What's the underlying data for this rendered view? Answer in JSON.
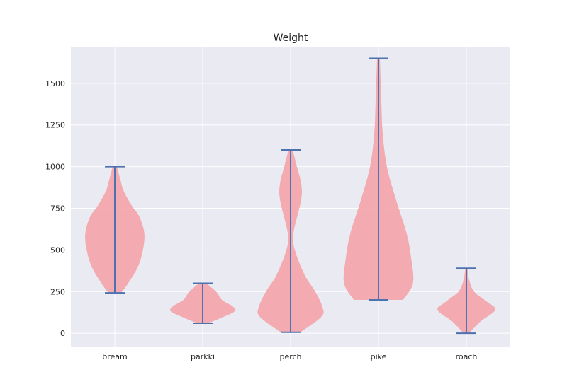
{
  "chart_data": {
    "type": "violin",
    "title": "Weight",
    "xlabel": "",
    "ylabel": "",
    "ylim": [
      -80,
      1720
    ],
    "yticks": [
      0,
      250,
      500,
      750,
      1000,
      1250,
      1500
    ],
    "grid": true,
    "colors": {
      "background": "#eaeaf2",
      "grid": "#ffffff",
      "body": "#f4a3aa",
      "line": "#4c72b0",
      "text": "#262626"
    },
    "categories": [
      "bream",
      "parkki",
      "perch",
      "pike",
      "roach"
    ],
    "series": [
      {
        "category": "bream",
        "min": 242,
        "max": 1000,
        "profile": [
          [
            242,
            0.18
          ],
          [
            300,
            0.38
          ],
          [
            400,
            0.66
          ],
          [
            500,
            0.8
          ],
          [
            600,
            0.84
          ],
          [
            700,
            0.7
          ],
          [
            760,
            0.5
          ],
          [
            850,
            0.26
          ],
          [
            920,
            0.16
          ],
          [
            1000,
            0.06
          ]
        ]
      },
      {
        "category": "parkki",
        "min": 60,
        "max": 300,
        "profile": [
          [
            60,
            0.15
          ],
          [
            90,
            0.5
          ],
          [
            130,
            0.9
          ],
          [
            160,
            0.86
          ],
          [
            200,
            0.55
          ],
          [
            250,
            0.38
          ],
          [
            300,
            0.1
          ]
        ]
      },
      {
        "category": "perch",
        "min": 5.9,
        "max": 1100,
        "profile": [
          [
            5.9,
            0.28
          ],
          [
            100,
            0.88
          ],
          [
            160,
            0.9
          ],
          [
            250,
            0.7
          ],
          [
            350,
            0.4
          ],
          [
            500,
            0.12
          ],
          [
            600,
            0.08
          ],
          [
            800,
            0.3
          ],
          [
            900,
            0.3
          ],
          [
            1000,
            0.18
          ],
          [
            1100,
            0.06
          ]
        ]
      },
      {
        "category": "pike",
        "min": 200,
        "max": 1650,
        "profile": [
          [
            200,
            0.7
          ],
          [
            300,
            0.98
          ],
          [
            450,
            0.93
          ],
          [
            600,
            0.8
          ],
          [
            800,
            0.5
          ],
          [
            1000,
            0.24
          ],
          [
            1200,
            0.12
          ],
          [
            1400,
            0.08
          ],
          [
            1650,
            0.04
          ]
        ]
      },
      {
        "category": "roach",
        "min": 0,
        "max": 390,
        "profile": [
          [
            0,
            0.08
          ],
          [
            70,
            0.4
          ],
          [
            140,
            0.82
          ],
          [
            190,
            0.58
          ],
          [
            250,
            0.22
          ],
          [
            320,
            0.08
          ],
          [
            390,
            0.03
          ]
        ]
      }
    ]
  }
}
